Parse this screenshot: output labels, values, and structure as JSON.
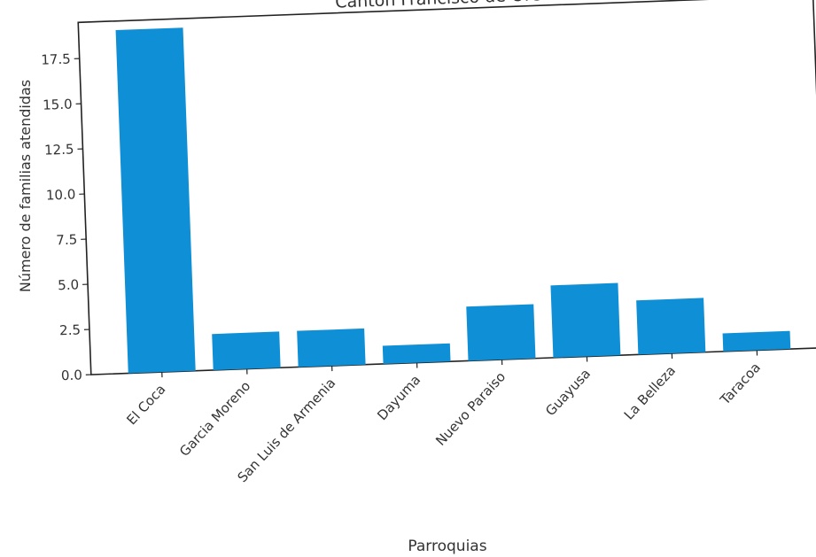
{
  "chart_data": {
    "type": "bar",
    "title": "Canton Francisco de Orellana",
    "xlabel": "Parroquias",
    "ylabel": "Número de familias atendidas",
    "categories": [
      "El Coca",
      "Garcia Moreno",
      "San Luis de Armenia",
      "Dayuma",
      "Nuevo Paraiso",
      "Guayusa",
      "La Belleza",
      "Taracoa"
    ],
    "values": [
      19,
      2,
      2,
      1,
      3,
      4,
      3,
      1
    ],
    "ylim": [
      0,
      19.5
    ],
    "yticks": [
      0.0,
      2.5,
      5.0,
      7.5,
      10.0,
      12.5,
      15.0,
      17.5
    ],
    "ytick_labels": [
      "0.0",
      "2.5",
      "5.0",
      "7.5",
      "10.0",
      "12.5",
      "15.0",
      "17.5"
    ],
    "grid": false,
    "bar_color": "#0f8fd6",
    "axis_color": "#222222",
    "text_color": "#333333"
  }
}
